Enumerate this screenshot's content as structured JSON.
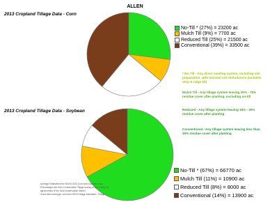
{
  "title": "ALLEN",
  "chart_data": [
    {
      "type": "pie",
      "title": "2013 Cropland Tillage Data - Corn",
      "labels": [
        "No-Till * (27%) = 23200 ac",
        "Mulch Till (9%) = 7700 ac",
        "Reduced Till (25%) = 21500 ac",
        "Conventional (39%) = 33500 ac"
      ],
      "values": [
        27,
        9,
        25,
        39
      ],
      "colors": [
        "#1fdc1f",
        "#ffc000",
        "#ffffff",
        "#7a3d1c"
      ]
    },
    {
      "type": "pie",
      "title": "2013 Cropland Tillage Data - Soybean",
      "labels": [
        "No-Till * (67%) = 66770 ac",
        "Mulch Till (11%) = 10900 ac",
        "Reduced Till (8%) = 8000 ac",
        "Conventional (14%) = 13900 ac"
      ],
      "values": [
        67,
        11,
        8,
        14
      ],
      "colors": [
        "#1fdc1f",
        "#ffc000",
        "#ffffff",
        "#7a3d1c"
      ]
    }
  ],
  "definitions": [
    {
      "text": "* No-Till - Any direct seeding system, including site preparation, with minimal soil disturbance (includes strip & ridge till)",
      "color": "#a8c400"
    },
    {
      "text": "Mulch Till - Any tillage system leaving 30% - 75% residue cover after planting, excluding no-till",
      "color": "#5aa51e"
    },
    {
      "text": "Reduced - Any tillage system leaving 16% - 30% residue cover after planting",
      "color": "#3c9e28"
    },
    {
      "text": "Conventional - Any tillage system leaving less than 15% residue cover after planting",
      "color": "#2a9a40"
    }
  ],
  "footnotes": [
    "- Acreage Estimates from NASS 2013 (corn and soybean only)",
    "- Percentages are from Conservation Tillage survey of the county, by",
    "  agronomists of the local conservation district",
    "- Good field coverage, sum from NRCS tillage estimates - Tillage"
  ]
}
